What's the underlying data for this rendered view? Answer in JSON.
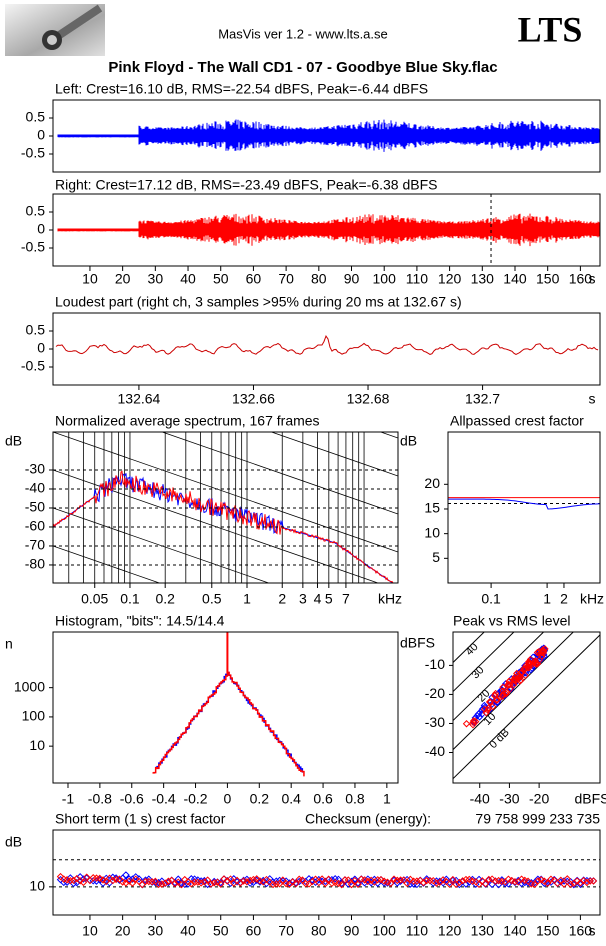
{
  "header": {
    "app": "MasVis ver 1.2 - www.lts.a.se",
    "logo_text": "LTS",
    "title": "Pink Floyd - The Wall CD1 - 07 - Goodbye Blue Sky.flac"
  },
  "chart_data": [
    {
      "type": "waveform",
      "title": "Left: Crest=16.10 dB, RMS=-22.54 dBFS, Peak=-6.44 dBFS",
      "color": "#0000ff",
      "xlim": [
        -1.3,
        166
      ],
      "ylim": [
        -1,
        1
      ],
      "yticks": [
        0.5,
        0,
        -0.5
      ]
    },
    {
      "type": "waveform",
      "title": "Right: Crest=17.12 dB, RMS=-23.49 dBFS, Peak=-6.38 dBFS",
      "color": "#ff0000",
      "xlim": [
        -1.3,
        166
      ],
      "ylim": [
        -1,
        1
      ],
      "yticks": [
        0.5,
        0,
        -0.5
      ],
      "marker": 132.67,
      "xticks": [
        10,
        20,
        30,
        40,
        50,
        60,
        70,
        80,
        90,
        100,
        110,
        120,
        130,
        140,
        150,
        160
      ],
      "xlabel": "s"
    },
    {
      "type": "line",
      "title": "Loudest part (right ch, 3 samples >95% during 20 ms at 132.67 s)",
      "color": "#cc0000",
      "xlim": [
        132.625,
        132.7205
      ],
      "ylim": [
        -1,
        1
      ],
      "yticks": [
        0.5,
        0,
        -0.5
      ],
      "xticks": [
        132.64,
        132.66,
        132.68,
        132.7
      ],
      "xlabel": "s"
    },
    {
      "type": "spectrum",
      "title": "Normalized average spectrum, 167 frames",
      "ylabel": "dB",
      "colors": [
        "#0000ff",
        "#ff0000"
      ],
      "xlim": [
        0.022,
        19.5
      ],
      "xlog": true,
      "ylim": [
        -89.5,
        -10
      ],
      "yticks": [
        -30,
        -40,
        -50,
        -60,
        -70,
        -80
      ],
      "xticks": [
        0.05,
        0.1,
        0.2,
        0.5,
        1,
        2,
        3,
        4,
        5,
        7
      ],
      "xlabel": "kHz",
      "grid": true
    },
    {
      "type": "crest",
      "title": "Allpassed crest factor",
      "ylabel": "dB",
      "colors": [
        "#0000ff",
        "#ff0000"
      ],
      "xlim": [
        0.017,
        8.8
      ],
      "xlog": true,
      "ylim": [
        0,
        30.6
      ],
      "yticks": [
        20,
        15,
        10,
        5
      ],
      "xticks": [
        0.1,
        1,
        2
      ],
      "xlabel": "kHz"
    },
    {
      "type": "histogram",
      "title": "Histogram, \"bits\": 14.5/14.4",
      "ylabel": "n",
      "colors": [
        "#0000ff",
        "#ff0000"
      ],
      "xlim": [
        -1.094,
        1.07
      ],
      "ylim": [
        0.55,
        80000
      ],
      "ylog": true,
      "yticks": [
        1000,
        100,
        10
      ],
      "xticks": [
        -1,
        -0.8,
        -0.6,
        -0.4,
        -0.2,
        0,
        0.2,
        0.4,
        0.6,
        0.8,
        1
      ]
    },
    {
      "type": "scatter",
      "title": "Peak vs RMS level",
      "ylabel": "dBFS",
      "colors": [
        "#0000ff",
        "#ff0000"
      ],
      "xlim": [
        -49,
        0.5
      ],
      "ylim": [
        -50.5,
        1.5
      ],
      "yticks": [
        -10,
        -20,
        -30,
        -40
      ],
      "xticks": [
        -40,
        -30,
        -20
      ],
      "xlabel": "dBFS",
      "crest_lines": [
        40,
        30,
        20,
        10,
        {
          "value": 0,
          "label": "0 dB"
        }
      ]
    },
    {
      "type": "points",
      "title": "Short term (1 s) crest factor",
      "ylabel": "dB",
      "colors": [
        "#0000ff",
        "#ff0000"
      ],
      "checksum_label": "Checksum (energy):",
      "checksum": "79 758 999 233 735",
      "xlim": [
        -1.3,
        166
      ],
      "ylim": [
        -0.4,
        31
      ],
      "yticks": [
        10
      ],
      "reference_lines": [
        10,
        20
      ],
      "xticks": [
        10,
        20,
        30,
        40,
        50,
        60,
        70,
        80,
        90,
        100,
        110,
        120,
        130,
        140,
        150,
        160
      ],
      "xlabel": "s"
    }
  ]
}
